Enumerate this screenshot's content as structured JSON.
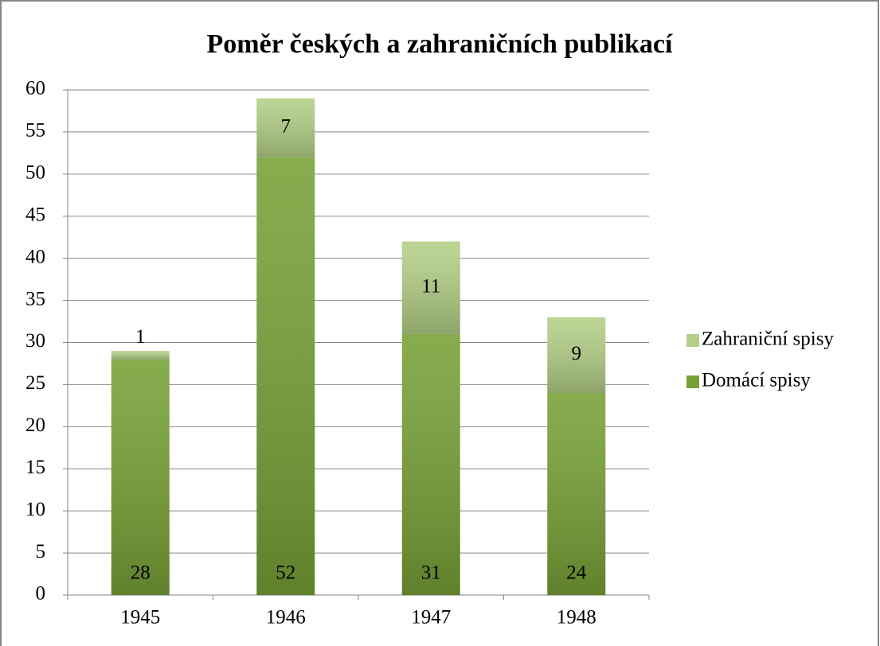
{
  "chart_data": {
    "type": "stacked_bar",
    "title": "Poměr českých a zahraničních publikací",
    "categories": [
      "1945",
      "1946",
      "1947",
      "1948"
    ],
    "series": [
      {
        "name": "Domácí spisy",
        "color": "#77a136",
        "values": [
          28,
          52,
          31,
          24
        ]
      },
      {
        "name": "Zahraniční spisy",
        "color": "#b3cf86",
        "values": [
          1,
          7,
          11,
          9
        ]
      }
    ],
    "ylim": [
      0,
      60
    ],
    "yticks": [
      0,
      5,
      10,
      15,
      20,
      25,
      30,
      35,
      40,
      45,
      50,
      55,
      60
    ],
    "grid": true,
    "legend": "right"
  }
}
